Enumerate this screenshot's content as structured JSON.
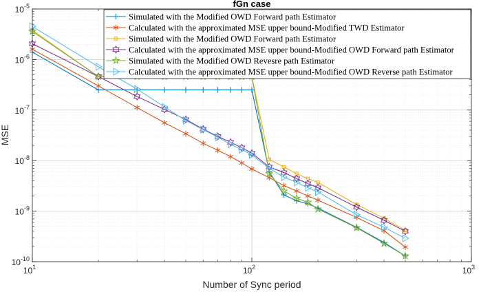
{
  "chart_data": {
    "type": "line",
    "title": "fGn case",
    "xlabel": "Number of Sync period",
    "ylabel": "MSE",
    "xscale": "log",
    "yscale": "log",
    "xlim": [
      10,
      1000
    ],
    "ylim": [
      1e-10,
      1e-05
    ],
    "grid": true,
    "legend_position": "top-right",
    "x_ticks": [
      {
        "value": 10,
        "base": "10",
        "exp": "1"
      },
      {
        "value": 100,
        "base": "10",
        "exp": "2"
      },
      {
        "value": 1000,
        "base": "10",
        "exp": "3"
      }
    ],
    "y_ticks": [
      {
        "value": 1e-10,
        "base": "10",
        "exp": "-10"
      },
      {
        "value": 1e-09,
        "base": "10",
        "exp": "-9"
      },
      {
        "value": 1e-08,
        "base": "10",
        "exp": "-8"
      },
      {
        "value": 1e-07,
        "base": "10",
        "exp": "-7"
      },
      {
        "value": 1e-06,
        "base": "10",
        "exp": "-6"
      },
      {
        "value": 1e-05,
        "base": "10",
        "exp": "-5"
      }
    ],
    "series": [
      {
        "name": "Simulated with the Modified OWD Forward path Estimator",
        "color": "#0072bd",
        "marker": "plus",
        "x": [
          10,
          20,
          30,
          40,
          50,
          60,
          70,
          80,
          90,
          100,
          120,
          140,
          160,
          180,
          200,
          300,
          400,
          500
        ],
        "y": [
          1.4e-06,
          2.5e-07,
          2.5e-07,
          2.5e-07,
          2.5e-07,
          2.5e-07,
          2.5e-07,
          2.5e-07,
          2.5e-07,
          2.5e-07,
          6e-09,
          2.1e-09,
          1.6e-09,
          1.4e-09,
          1.15e-09,
          4.8e-10,
          2.4e-10,
          1.3e-10
        ]
      },
      {
        "name": "Calculated with the approximated MSE upper bound-Modified TWD Estimator",
        "color": "#d95319",
        "marker": "asterisk",
        "x": [
          10,
          20,
          30,
          40,
          50,
          60,
          70,
          80,
          90,
          100,
          120,
          140,
          160,
          180,
          200,
          300,
          400,
          500
        ],
        "y": [
          1.6e-06,
          3e-07,
          1.12e-07,
          5.6e-08,
          3.4e-08,
          2.2e-08,
          1.6e-08,
          1.2e-08,
          9e-09,
          6.8e-09,
          4.6e-09,
          3.2e-09,
          2.5e-09,
          2e-09,
          1.65e-09,
          7.5e-10,
          4.1e-10,
          1.95e-10
        ]
      },
      {
        "name": "Simulated with the Modified OWD Forward path Estimator",
        "color": "#edb120",
        "marker": "square",
        "x": [
          10,
          20,
          30,
          40,
          50,
          60,
          70,
          80,
          90,
          100,
          120,
          140,
          160,
          180,
          200,
          300,
          400,
          500
        ],
        "y": [
          3.8e-06,
          4.6e-07,
          4.6e-07,
          4.6e-07,
          4.6e-07,
          4.6e-07,
          4.6e-07,
          4.6e-07,
          4.6e-07,
          4.6e-07,
          1.05e-08,
          7.5e-09,
          5.5e-09,
          4.4e-09,
          3.7e-09,
          1.35e-09,
          7.2e-10,
          4.2e-10
        ]
      },
      {
        "name": "Calculated with the approximated MSE upper bound-Modified OWD Forward path Estimator",
        "color": "#7e2f8e",
        "marker": "hexagram",
        "x": [
          10,
          20,
          30,
          40,
          50,
          60,
          70,
          80,
          90,
          100,
          120,
          140,
          160,
          180,
          200,
          300,
          400,
          500
        ],
        "y": [
          2.05e-06,
          4.6e-07,
          1.85e-07,
          1.03e-07,
          6.5e-08,
          4.2e-08,
          3e-08,
          2.3e-08,
          1.8e-08,
          1.4e-08,
          7.5e-09,
          5.8e-09,
          4.4e-09,
          3.5e-09,
          2.9e-09,
          1.2e-09,
          6.6e-10,
          4e-10
        ]
      },
      {
        "name": "Simulated with the Modified OWD Revesre path Estimator",
        "color": "#77ac30",
        "marker": "pentagram",
        "x": [
          10,
          20,
          30,
          40,
          50,
          60,
          70,
          80,
          90,
          100,
          120,
          140,
          160,
          180,
          200,
          300,
          400,
          500
        ],
        "y": [
          3.6e-06,
          4.6e-07,
          4.6e-07,
          4.6e-07,
          4.6e-07,
          4.6e-07,
          4.6e-07,
          4.6e-07,
          4.6e-07,
          4.6e-07,
          5.5e-09,
          2.5e-09,
          1.8e-09,
          1.5e-09,
          1.1e-09,
          4.7e-10,
          2.3e-10,
          1.3e-10
        ]
      },
      {
        "name": "Calculated with the approximated MSE upper bound-Modified OWD Reverse path Estimator",
        "color": "#4dbeee",
        "marker": "triangle-right",
        "x": [
          10,
          20,
          30,
          40,
          50,
          60,
          70,
          80,
          90,
          100,
          120,
          140,
          160,
          180,
          200,
          300,
          400,
          500
        ],
        "y": [
          4.5e-06,
          7.2e-07,
          2.6e-07,
          1.15e-07,
          6.2e-08,
          4.1e-08,
          2.9e-08,
          2.1e-08,
          1.65e-08,
          1.3e-08,
          7e-09,
          4.7e-09,
          3.7e-09,
          2.9e-09,
          2.4e-09,
          8.5e-10,
          4.8e-10,
          2.9e-10
        ]
      }
    ]
  }
}
